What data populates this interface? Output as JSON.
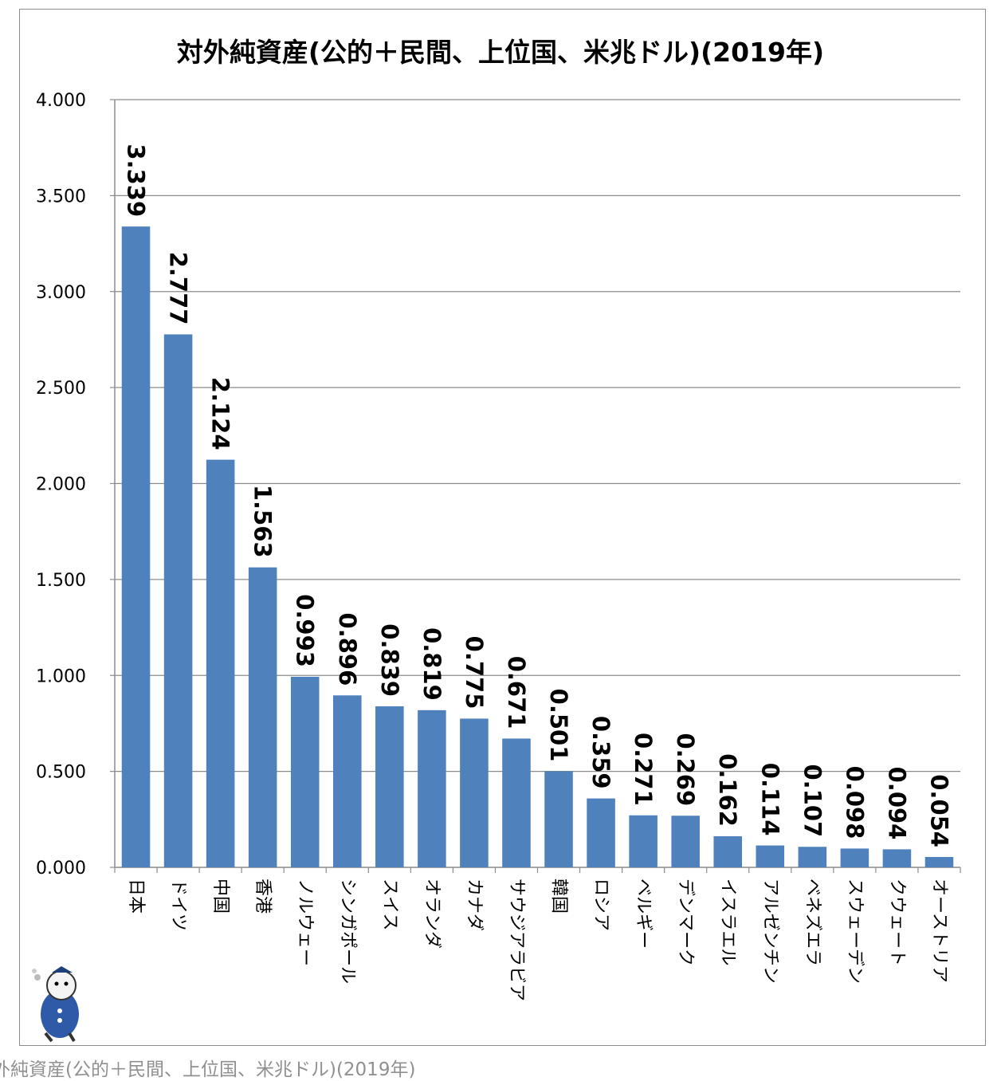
{
  "chart_data": {
    "type": "bar",
    "title": "対外純資産(公的＋民間、上位国、米兆ドル)(2019年)",
    "xlabel": "",
    "ylabel": "",
    "ylim": [
      0,
      4
    ],
    "y_ticks": [
      "0.000",
      "0.500",
      "1.000",
      "1.500",
      "2.000",
      "2.500",
      "3.000",
      "3.500",
      "4.000"
    ],
    "grid": true,
    "bar_color": "#4f81bd",
    "categories": [
      "日本",
      "ドイツ",
      "中国",
      "香港",
      "ノルウェー",
      "シンガポール",
      "スイス",
      "オランダ",
      "カナダ",
      "サウジアラビア",
      "韓国",
      "ロシア",
      "ベルギー",
      "デンマーク",
      "イスラエル",
      "アルゼンチン",
      "ベネズエラ",
      "スウェーデン",
      "クウェート",
      "オーストリア"
    ],
    "values": [
      3.339,
      2.777,
      2.124,
      1.563,
      0.993,
      0.896,
      0.839,
      0.819,
      0.775,
      0.671,
      0.501,
      0.359,
      0.271,
      0.269,
      0.162,
      0.114,
      0.107,
      0.098,
      0.094,
      0.054
    ],
    "data_labels": [
      "3.339",
      "2.777",
      "2.124",
      "1.563",
      "0.993",
      "0.896",
      "0.839",
      "0.819",
      "0.775",
      "0.671",
      "0.501",
      "0.359",
      "0.271",
      "0.269",
      "0.162",
      "0.114",
      "0.107",
      "0.098",
      "0.094",
      "0.054"
    ]
  },
  "caption": "外純資産(公的＋民間、上位国、米兆ドル)(2019年)",
  "mascot": "mascot-logo"
}
